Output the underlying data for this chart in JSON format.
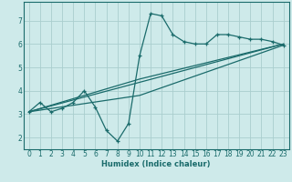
{
  "xlabel": "Humidex (Indice chaleur)",
  "xlim": [
    -0.5,
    23.5
  ],
  "ylim": [
    1.5,
    7.8
  ],
  "xticks": [
    0,
    1,
    2,
    3,
    4,
    5,
    6,
    7,
    8,
    9,
    10,
    11,
    12,
    13,
    14,
    15,
    16,
    17,
    18,
    19,
    20,
    21,
    22,
    23
  ],
  "yticks": [
    2,
    3,
    4,
    5,
    6,
    7
  ],
  "bg_color": "#ceeaea",
  "grid_color": "#aacece",
  "line_color": "#1a6b6b",
  "curve1_x": [
    0,
    1,
    2,
    3,
    4,
    5,
    6,
    7,
    8,
    9,
    10,
    11,
    12,
    13,
    14,
    15,
    16,
    17,
    18,
    19,
    20,
    21,
    22,
    23
  ],
  "curve1_y": [
    3.1,
    3.5,
    3.1,
    3.25,
    3.5,
    4.0,
    3.3,
    2.3,
    1.85,
    2.6,
    5.5,
    7.3,
    7.2,
    6.4,
    6.1,
    6.0,
    6.0,
    6.4,
    6.4,
    6.3,
    6.2,
    6.2,
    6.1,
    5.95
  ],
  "line1_x": [
    0,
    23
  ],
  "line1_y": [
    3.1,
    6.0
  ],
  "line2_x": [
    0,
    10,
    23
  ],
  "line2_y": [
    3.1,
    4.5,
    6.0
  ],
  "line3_x": [
    0,
    10,
    23
  ],
  "line3_y": [
    3.1,
    3.8,
    5.95
  ]
}
